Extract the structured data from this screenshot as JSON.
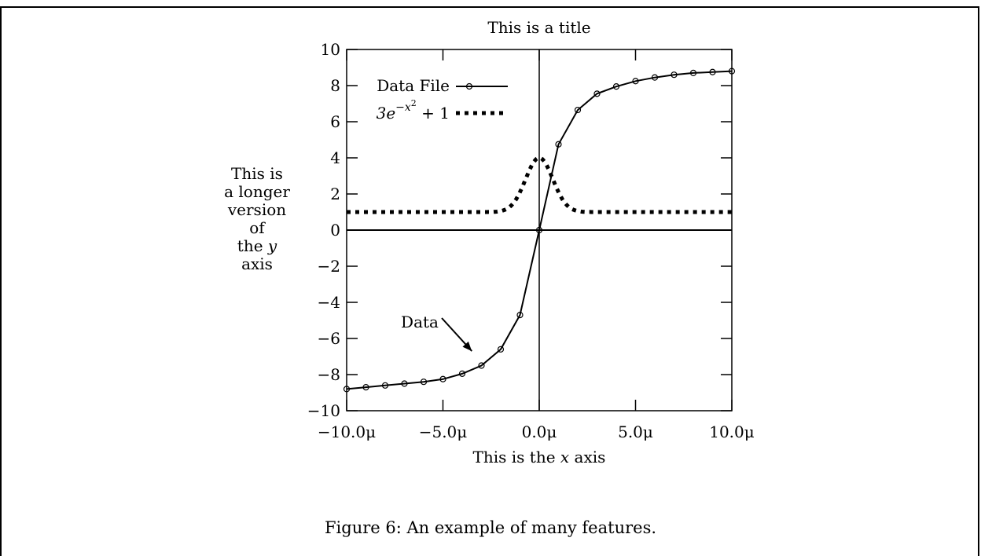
{
  "caption": "Figure 6: An example of many features.",
  "chart_data": {
    "type": "line",
    "title": "This is a title",
    "xlabel": "This is the x axis",
    "xlabel_parts": [
      "This is the ",
      "x",
      " axis"
    ],
    "ylabel_lines": [
      "This is",
      "a longer",
      "version",
      "of",
      "the y",
      "axis"
    ],
    "ylabel_line5_parts": [
      "the ",
      "y"
    ],
    "xlim": [
      -10,
      10
    ],
    "ylim": [
      -10,
      10
    ],
    "x_ticks": [
      -10,
      -5,
      0,
      5,
      10
    ],
    "x_tick_labels": [
      "−10.0μ",
      "−5.0μ",
      "0.0μ",
      "5.0μ",
      "10.0μ"
    ],
    "y_ticks": [
      -10,
      -8,
      -6,
      -4,
      -2,
      0,
      2,
      4,
      6,
      8,
      10
    ],
    "y_tick_labels": [
      "−10",
      "−8",
      "−6",
      "−4",
      "−2",
      "0",
      "2",
      "4",
      "6",
      "8",
      "10"
    ],
    "zero_axes": true,
    "legend_position": "top-left",
    "series": [
      {
        "name": "Data File",
        "style": "line-with-circles",
        "x": [
          -10,
          -9,
          -8,
          -7,
          -6,
          -5,
          -4,
          -3,
          -2,
          -1,
          0,
          1,
          2,
          3,
          4,
          5,
          6,
          7,
          8,
          9,
          10
        ],
        "y": [
          -8.8,
          -8.7,
          -8.6,
          -8.5,
          -8.4,
          -8.25,
          -7.95,
          -7.5,
          -6.6,
          -4.7,
          0.0,
          4.75,
          6.65,
          7.55,
          7.95,
          8.25,
          8.45,
          8.6,
          8.7,
          8.75,
          8.8
        ]
      },
      {
        "name": "3e^{-x^2} + 1",
        "name_parts": {
          "base": "3e",
          "sup_minus": "−",
          "sup_x": "x",
          "sup_exp": "2",
          "tail": " + 1"
        },
        "style": "dotted",
        "function": "3*exp(-x^2)+1",
        "sample_range": [
          -10,
          10
        ]
      }
    ],
    "annotations": [
      {
        "text": "Data",
        "arrow_to": [
          -3.5,
          -6.7
        ]
      }
    ]
  }
}
